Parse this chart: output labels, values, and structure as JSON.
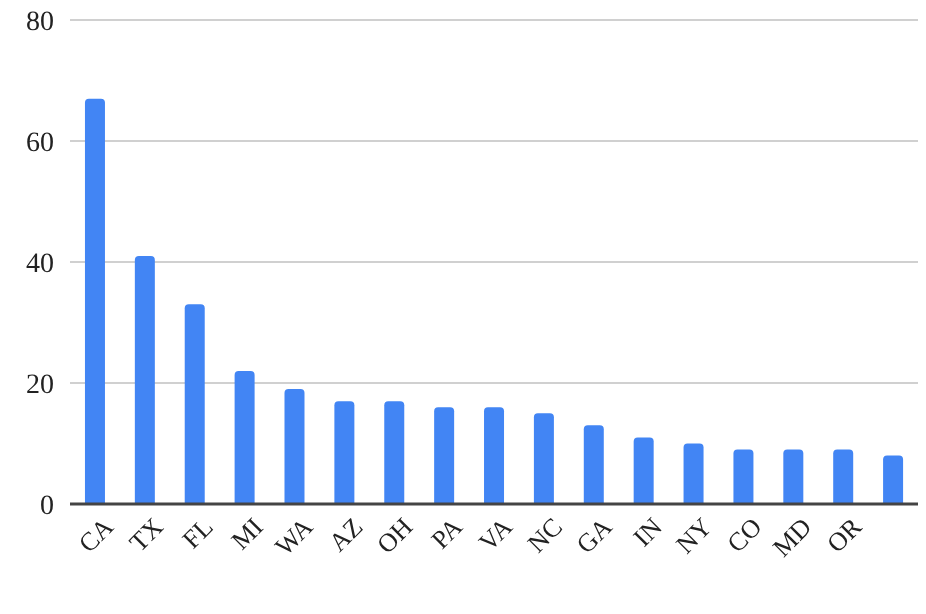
{
  "chart_data": {
    "type": "bar",
    "categories": [
      "CA",
      "TX",
      "FL",
      "MI",
      "WA",
      "AZ",
      "OH",
      "PA",
      "VA",
      "NC",
      "GA",
      "IN",
      "NY",
      "CO",
      "MD",
      "OR",
      null
    ],
    "values": [
      67,
      41,
      33,
      22,
      19,
      17,
      17,
      16,
      16,
      15,
      13,
      11,
      10,
      9,
      9,
      9,
      8
    ],
    "color": "#4285f4",
    "ylim": [
      0,
      80
    ],
    "yticks": [
      0,
      20,
      40,
      60,
      80
    ],
    "grid": "y"
  }
}
